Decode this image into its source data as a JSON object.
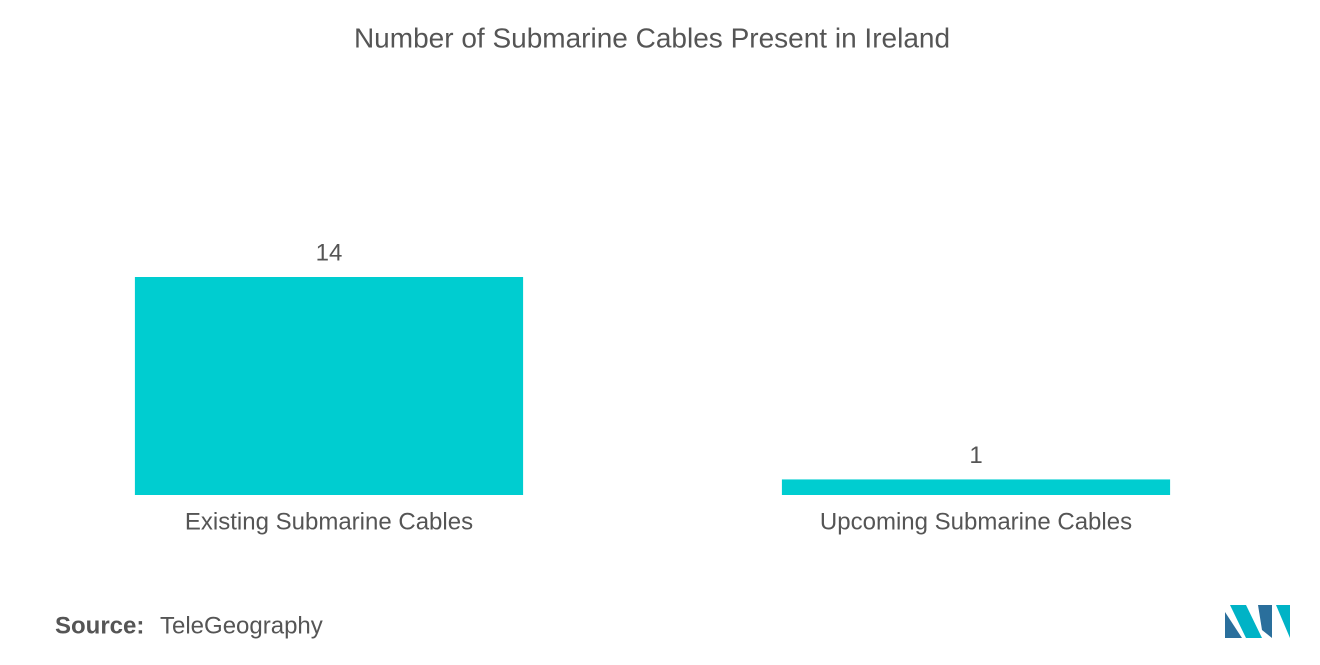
{
  "chart_data": {
    "type": "bar",
    "title": "Number of Submarine Cables Present in Ireland",
    "categories": [
      "Existing Submarine Cables",
      "Upcoming Submarine Cables"
    ],
    "values": [
      14,
      1
    ],
    "color": "#00cdd0"
  },
  "source_label": "Source:",
  "source": "TeleGeography"
}
